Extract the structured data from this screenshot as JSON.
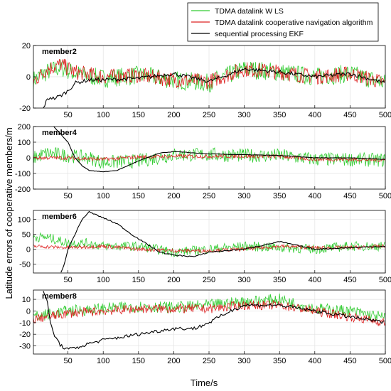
{
  "chart_data": {
    "type": "line",
    "xlabel": "Time/s",
    "ylabel": "Latitude errors of cooperative members/m",
    "xlim": [
      1,
      500
    ],
    "xticks": [
      50,
      100,
      150,
      200,
      250,
      300,
      350,
      400,
      450,
      500
    ],
    "grid": true,
    "legend_position": "top-right",
    "series_styles": [
      {
        "name": "TDMA datalink W LS",
        "color": "#33cc33"
      },
      {
        "name": "TDMA datalink cooperative navigation algorithm",
        "color": "#dd2222"
      },
      {
        "name": "sequential processing EKF",
        "color": "#000000"
      }
    ],
    "panels": [
      {
        "label": "member2",
        "ylim": [
          -20,
          20
        ],
        "yticks": [
          -20,
          0,
          20
        ],
        "series": [
          {
            "name": "TDMA datalink W LS",
            "noise": 6,
            "x": [
              1,
              20,
              40,
              60,
              100,
              150,
              200,
              250,
              300,
              350,
              400,
              450,
              500
            ],
            "y": [
              -2,
              3,
              6,
              2,
              -1,
              1,
              -2,
              -4,
              5,
              3,
              0,
              2,
              -4
            ]
          },
          {
            "name": "TDMA datalink cooperative navigation algorithm",
            "noise": 5,
            "x": [
              1,
              20,
              40,
              60,
              100,
              150,
              200,
              250,
              300,
              350,
              400,
              450,
              500
            ],
            "y": [
              -3,
              5,
              8,
              3,
              0,
              1,
              -2,
              -3,
              5,
              3,
              0,
              2,
              -4
            ]
          },
          {
            "name": "sequential processing EKF",
            "noise": 1.2,
            "x": [
              15,
              20,
              25,
              30,
              40,
              50,
              60,
              80,
              100,
              150,
              200,
              250,
              300,
              350,
              400,
              450,
              500
            ],
            "y": [
              -20,
              -15,
              -13,
              -14,
              -12,
              -9,
              -4,
              -2,
              -2,
              -1,
              2,
              -3,
              5,
              3,
              0,
              2,
              -4
            ]
          }
        ]
      },
      {
        "label": "member4",
        "ylim": [
          -200,
          200
        ],
        "yticks": [
          -200,
          -100,
          0,
          100,
          200
        ],
        "series": [
          {
            "name": "TDMA datalink W LS",
            "noise": 45,
            "x": [
              1,
              20,
              40,
              60,
              80,
              100,
              150,
              200,
              250,
              300,
              350,
              400,
              450,
              500
            ],
            "y": [
              0,
              30,
              20,
              10,
              0,
              -30,
              -20,
              20,
              20,
              15,
              15,
              -10,
              -10,
              -15
            ]
          },
          {
            "name": "TDMA datalink cooperative navigation algorithm",
            "noise": 12,
            "x": [
              1,
              50,
              100,
              150,
              200,
              250,
              300,
              350,
              400,
              450,
              500
            ],
            "y": [
              0,
              0,
              -10,
              5,
              10,
              10,
              10,
              10,
              -10,
              -10,
              -15
            ]
          },
          {
            "name": "sequential processing EKF",
            "noise": 1.5,
            "x": [
              30,
              40,
              50,
              60,
              70,
              80,
              100,
              120,
              150,
              180,
              200,
              250,
              300,
              350,
              400,
              450,
              500
            ],
            "y": [
              200,
              150,
              100,
              0,
              -50,
              -80,
              -90,
              -80,
              -20,
              30,
              40,
              25,
              20,
              15,
              0,
              0,
              -10
            ]
          }
        ]
      },
      {
        "label": "member6",
        "ylim": [
          -80,
          130
        ],
        "yticks": [
          -50,
          0,
          50,
          100
        ],
        "series": [
          {
            "name": "TDMA datalink W LS",
            "noise": 16,
            "x": [
              1,
              20,
              50,
              80,
              100,
              150,
              200,
              250,
              300,
              350,
              400,
              450,
              500
            ],
            "y": [
              40,
              40,
              20,
              20,
              10,
              10,
              -10,
              0,
              10,
              5,
              0,
              10,
              10
            ]
          },
          {
            "name": "TDMA datalink cooperative navigation algorithm",
            "noise": 6,
            "x": [
              1,
              50,
              100,
              150,
              200,
              250,
              300,
              350,
              400,
              450,
              500
            ],
            "y": [
              10,
              5,
              10,
              0,
              -5,
              -5,
              0,
              10,
              5,
              5,
              10
            ]
          },
          {
            "name": "sequential processing EKF",
            "noise": 2,
            "x": [
              40,
              45,
              50,
              60,
              70,
              80,
              100,
              120,
              140,
              160,
              180,
              200,
              230,
              250,
              300,
              350,
              400,
              450,
              500
            ],
            "y": [
              -80,
              -50,
              0,
              50,
              100,
              125,
              105,
              85,
              50,
              20,
              -10,
              -20,
              -25,
              -10,
              0,
              25,
              0,
              5,
              10
            ]
          }
        ]
      },
      {
        "label": "member8",
        "ylim": [
          -37,
          18
        ],
        "yticks": [
          -30,
          -20,
          -10,
          0,
          10
        ],
        "series": [
          {
            "name": "TDMA datalink W LS",
            "noise": 5,
            "x": [
              1,
              50,
              100,
              150,
              200,
              250,
              300,
              350,
              400,
              450,
              500
            ],
            "y": [
              -5,
              0,
              2,
              4,
              3,
              5,
              8,
              10,
              2,
              0,
              -6
            ]
          },
          {
            "name": "TDMA datalink cooperative navigation algorithm",
            "noise": 4,
            "x": [
              1,
              50,
              100,
              150,
              200,
              250,
              300,
              350,
              400,
              450,
              500
            ],
            "y": [
              -7,
              -2,
              0,
              2,
              2,
              2,
              5,
              5,
              0,
              -5,
              -10
            ]
          },
          {
            "name": "sequential processing EKF",
            "noise": 1.5,
            "x": [
              15,
              20,
              25,
              30,
              40,
              50,
              60,
              80,
              100,
              150,
              200,
              230,
              250,
              280,
              300,
              350,
              400,
              450,
              500
            ],
            "y": [
              18,
              10,
              -10,
              -20,
              -30,
              -33,
              -32,
              -28,
              -25,
              -20,
              -15,
              -15,
              -10,
              0,
              5,
              5,
              0,
              -5,
              -10
            ]
          }
        ]
      }
    ]
  }
}
